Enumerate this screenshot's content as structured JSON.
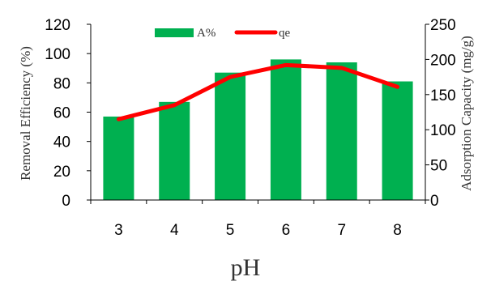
{
  "chart_data": {
    "type": "bar+line",
    "categories": [
      "3",
      "4",
      "5",
      "6",
      "7",
      "8"
    ],
    "bar_series": {
      "name": "A%",
      "values": [
        57,
        67,
        87,
        96,
        94,
        81
      ],
      "color": "#00b050",
      "axis": "left"
    },
    "line_series": {
      "name": "qe",
      "values": [
        115,
        135,
        175,
        192,
        188,
        161
      ],
      "color": "#ff0000",
      "axis": "right"
    },
    "xlabel": "pH",
    "ylabel_left": "Removal Efficiency (%)",
    "ylabel_right": "Adsorption Capacity (mg/g)",
    "ylim_left": [
      0,
      120
    ],
    "yticks_left": [
      0,
      20,
      40,
      60,
      80,
      100,
      120
    ],
    "ylim_right": [
      0,
      250
    ],
    "yticks_right": [
      0,
      50,
      100,
      150,
      200,
      250
    ],
    "grid": false,
    "legend_position": "top-center"
  }
}
